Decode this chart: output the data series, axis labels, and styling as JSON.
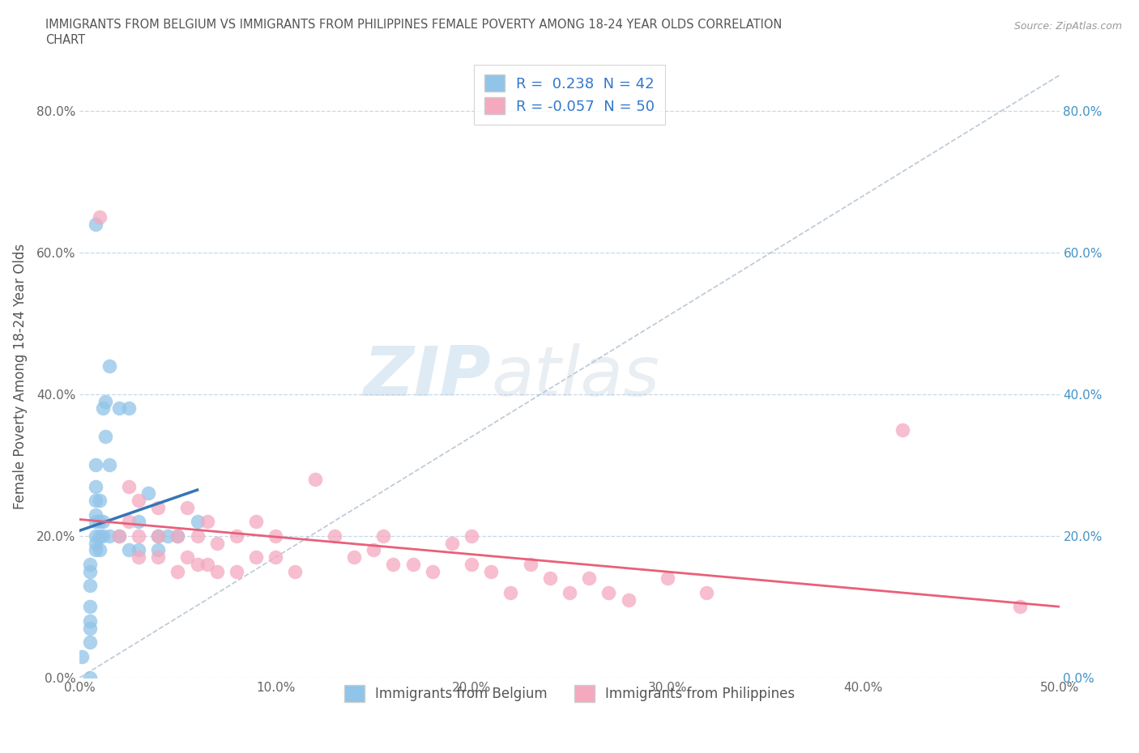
{
  "title_line1": "IMMIGRANTS FROM BELGIUM VS IMMIGRANTS FROM PHILIPPINES FEMALE POVERTY AMONG 18-24 YEAR OLDS CORRELATION",
  "title_line2": "CHART",
  "source": "Source: ZipAtlas.com",
  "ylabel": "Female Poverty Among 18-24 Year Olds",
  "xlabel_belgium": "Immigrants from Belgium",
  "xlabel_philippines": "Immigrants from Philippines",
  "r_belgium": 0.238,
  "n_belgium": 42,
  "r_philippines": -0.057,
  "n_philippines": 50,
  "xlim": [
    0.0,
    0.5
  ],
  "ylim": [
    0.0,
    0.85
  ],
  "yticks": [
    0.0,
    0.2,
    0.4,
    0.6,
    0.8
  ],
  "xticks": [
    0.0,
    0.1,
    0.2,
    0.3,
    0.4,
    0.5
  ],
  "color_belgium": "#90c4e8",
  "color_philippines": "#f4a9bf",
  "trendline_belgium": "#3575b5",
  "trendline_philippines": "#e8607a",
  "watermark_zip": "ZIP",
  "watermark_atlas": "atlas",
  "belgium_x": [
    0.001,
    0.005,
    0.005,
    0.005,
    0.005,
    0.005,
    0.005,
    0.005,
    0.005,
    0.008,
    0.008,
    0.008,
    0.008,
    0.008,
    0.008,
    0.008,
    0.008,
    0.008,
    0.01,
    0.01,
    0.01,
    0.01,
    0.012,
    0.012,
    0.012,
    0.013,
    0.013,
    0.015,
    0.015,
    0.015,
    0.02,
    0.02,
    0.025,
    0.025,
    0.03,
    0.03,
    0.035,
    0.04,
    0.04,
    0.045,
    0.05,
    0.06
  ],
  "belgium_y": [
    0.03,
    0.0,
    0.05,
    0.07,
    0.08,
    0.1,
    0.13,
    0.15,
    0.16,
    0.18,
    0.19,
    0.2,
    0.22,
    0.23,
    0.25,
    0.27,
    0.3,
    0.64,
    0.18,
    0.2,
    0.22,
    0.25,
    0.2,
    0.22,
    0.38,
    0.34,
    0.39,
    0.2,
    0.3,
    0.44,
    0.2,
    0.38,
    0.18,
    0.38,
    0.18,
    0.22,
    0.26,
    0.18,
    0.2,
    0.2,
    0.2,
    0.22
  ],
  "philippines_x": [
    0.01,
    0.02,
    0.025,
    0.025,
    0.03,
    0.03,
    0.03,
    0.04,
    0.04,
    0.04,
    0.05,
    0.05,
    0.055,
    0.055,
    0.06,
    0.06,
    0.065,
    0.065,
    0.07,
    0.07,
    0.08,
    0.08,
    0.09,
    0.09,
    0.1,
    0.1,
    0.11,
    0.12,
    0.13,
    0.14,
    0.15,
    0.155,
    0.16,
    0.17,
    0.18,
    0.19,
    0.2,
    0.2,
    0.21,
    0.22,
    0.23,
    0.24,
    0.25,
    0.26,
    0.27,
    0.28,
    0.3,
    0.32,
    0.42,
    0.48
  ],
  "philippines_y": [
    0.65,
    0.2,
    0.22,
    0.27,
    0.17,
    0.2,
    0.25,
    0.17,
    0.2,
    0.24,
    0.15,
    0.2,
    0.17,
    0.24,
    0.16,
    0.2,
    0.16,
    0.22,
    0.15,
    0.19,
    0.15,
    0.2,
    0.17,
    0.22,
    0.17,
    0.2,
    0.15,
    0.28,
    0.2,
    0.17,
    0.18,
    0.2,
    0.16,
    0.16,
    0.15,
    0.19,
    0.16,
    0.2,
    0.15,
    0.12,
    0.16,
    0.14,
    0.12,
    0.14,
    0.12,
    0.11,
    0.14,
    0.12,
    0.35,
    0.1
  ]
}
